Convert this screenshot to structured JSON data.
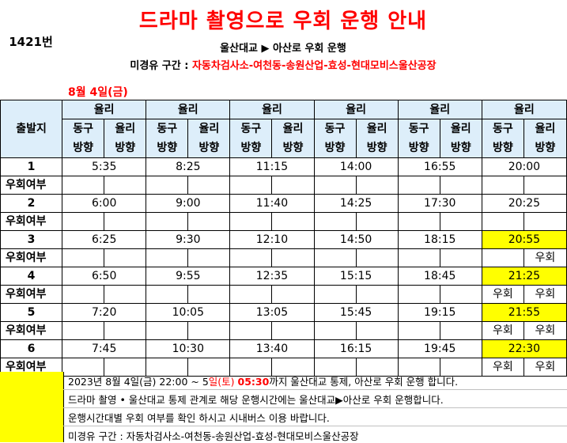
{
  "header": {
    "route": "1421번",
    "title": "드라마 촬영으로 우회 운행 안내",
    "subtitle": "울산대교 ▶ 아산로 우회 운행",
    "section_label": "미경유 구간 : ",
    "section_value": "자동차검사소-여천동-송원산업-효성-현대모비스울산공장",
    "date": "8월 4일(금)"
  },
  "table": {
    "depart_label": "출발지",
    "group_label": "율리",
    "dir1_a": "동구",
    "dir1_b": "방향",
    "dir2_a": "율리",
    "dir2_b": "방향",
    "row_label": "우회여부",
    "rows": [
      {
        "no": "1",
        "times": [
          "5:35",
          "8:25",
          "11:15",
          "14:00",
          "16:55",
          "20:00"
        ],
        "detour": [
          "",
          ""
        ]
      },
      {
        "no": "2",
        "times": [
          "6:00",
          "9:00",
          "11:40",
          "14:25",
          "17:30",
          "20:25"
        ],
        "detour": [
          "",
          ""
        ]
      },
      {
        "no": "3",
        "times": [
          "6:25",
          "9:30",
          "12:10",
          "14:50",
          "18:15",
          "20:55"
        ],
        "detour": [
          "",
          "우회"
        ]
      },
      {
        "no": "4",
        "times": [
          "6:50",
          "9:55",
          "12:35",
          "15:15",
          "18:45",
          "21:25"
        ],
        "detour": [
          "우회",
          "우회"
        ]
      },
      {
        "no": "5",
        "times": [
          "7:20",
          "10:05",
          "13:05",
          "15:45",
          "19:15",
          "21:55"
        ],
        "detour": [
          "우회",
          "우회"
        ]
      },
      {
        "no": "6",
        "times": [
          "7:45",
          "10:30",
          "13:40",
          "16:15",
          "19:45",
          "22:30"
        ],
        "detour": [
          "우회",
          "우회"
        ]
      }
    ]
  },
  "notes": {
    "l1_a": "2023년 8월 4일(금) 22:00 ~ 5",
    "l1_b": "일(토) ",
    "l1_c": "05:30",
    "l1_d": "까지 울산대교 통제, 아산로 우회 운행 합니다.",
    "l2": "드라마 촬영 • 울산대교 통제 관계로 해당 운행시간에는 울산대교▶아산로 우회 운행합니다.",
    "l3": "운행시간대별 우회 여부를 확인 하시고 시내버스 이용 바랍니다.",
    "l4": "미경유 구간 : 자동차검사소-여천동-송원산업-효성-현대모비스울산공장"
  },
  "colors": {
    "highlight": "#ffff00",
    "header_bg": "#ddeefa",
    "title": "#ff0000"
  }
}
